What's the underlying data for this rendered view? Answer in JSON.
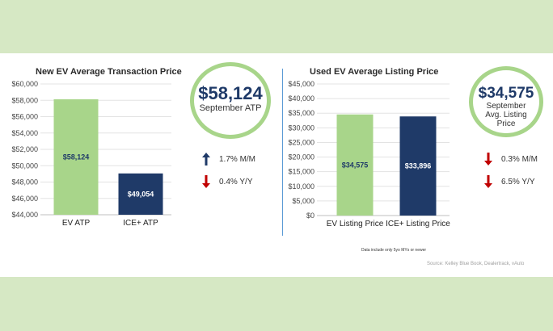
{
  "colors": {
    "green_bar": "#a8d58a",
    "navy_bar": "#1f3a68",
    "up_arrow": "#1f3a68",
    "down_arrow": "#c00000",
    "ring": "#a8d58a",
    "divider": "#5b9bd5"
  },
  "left": {
    "title": "New EV Average Transaction Price",
    "highlight": {
      "value": "$58,124",
      "label": "September ATP"
    },
    "changes": [
      {
        "direction": "up",
        "icon": "arrow-up-icon",
        "text": "1.7% M/M"
      },
      {
        "direction": "down",
        "icon": "arrow-down-icon",
        "text": "0.4% Y/Y"
      }
    ]
  },
  "right": {
    "title": "Used EV Average Listing Price",
    "highlight": {
      "value": "$34,575",
      "label": "September Avg. Listing Price"
    },
    "changes": [
      {
        "direction": "down",
        "icon": "arrow-down-icon",
        "text": "0.3% M/M"
      },
      {
        "direction": "down",
        "icon": "arrow-down-icon",
        "text": "6.5% Y/Y"
      }
    ]
  },
  "footnote": "Data include only 5yo MYs or newer",
  "source": "Source: Kelley Blue Book, Dealertrack, vAuto",
  "chart_data": [
    {
      "type": "bar",
      "title": "New EV Average Transaction Price",
      "categories": [
        "EV ATP",
        "ICE+ ATP"
      ],
      "values": [
        58124,
        49054
      ],
      "data_labels": [
        "$58,124",
        "$49,054"
      ],
      "bar_colors": [
        "#a8d58a",
        "#1f3a68"
      ],
      "label_colors": [
        "#1f3a68",
        "#ffffff"
      ],
      "ylim": [
        44000,
        60000
      ],
      "yticks": [
        44000,
        46000,
        48000,
        50000,
        52000,
        54000,
        56000,
        58000,
        60000
      ],
      "ytick_labels": [
        "$44,000",
        "$46,000",
        "$48,000",
        "$50,000",
        "$52,000",
        "$54,000",
        "$56,000",
        "$58,000",
        "$60,000"
      ],
      "grid": true
    },
    {
      "type": "bar",
      "title": "Used EV Average Listing Price",
      "categories": [
        "EV Listing Price",
        "ICE+ Listing Price"
      ],
      "values": [
        34575,
        33896
      ],
      "data_labels": [
        "$34,575",
        "$33,896"
      ],
      "bar_colors": [
        "#a8d58a",
        "#1f3a68"
      ],
      "label_colors": [
        "#1f3a68",
        "#ffffff"
      ],
      "ylim": [
        0,
        45000
      ],
      "yticks": [
        0,
        5000,
        10000,
        15000,
        20000,
        25000,
        30000,
        35000,
        40000,
        45000
      ],
      "ytick_labels": [
        "$0",
        "$5,000",
        "$10,000",
        "$15,000",
        "$20,000",
        "$25,000",
        "$30,000",
        "$35,000",
        "$40,000",
        "$45,000"
      ],
      "grid": true
    }
  ]
}
